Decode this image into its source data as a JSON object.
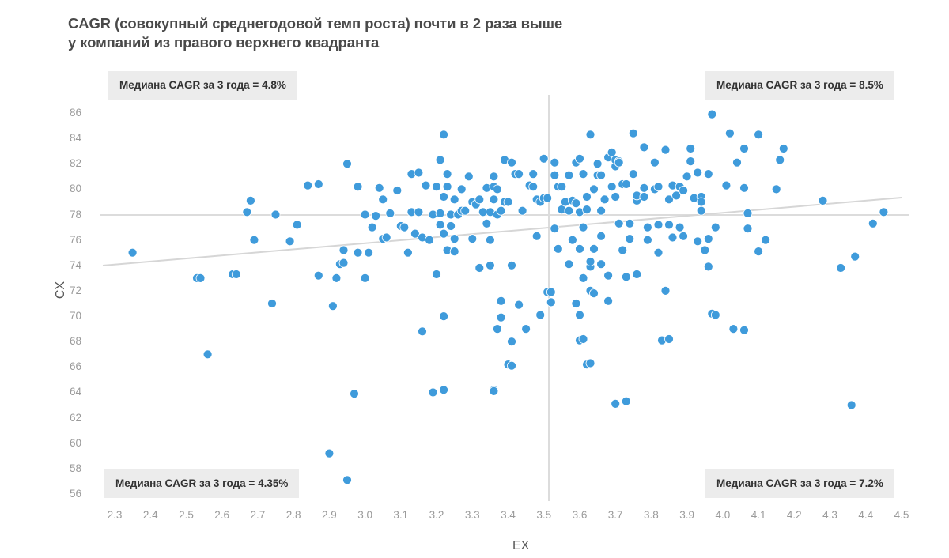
{
  "title": {
    "line1": "CAGR (совокупный среднегодовой темп роста) почти в  2 раза выше",
    "line2": "у компаний из правого верхнего квадранта"
  },
  "quadrant_labels": {
    "top_left": "Медиана CAGR за 3 года = 4.8%",
    "top_right": "Медиана CAGR за 3 года = 8.5%",
    "bottom_left": "Медиана CAGR за 3 года = 4.35%",
    "bottom_right": "Медиана CAGR за 3 года = 7.2%"
  },
  "axes": {
    "x_title": "EX",
    "y_title": "CX",
    "x_ticks": [
      "2.3",
      "2.4",
      "2.5",
      "2.6",
      "2.7",
      "2.8",
      "2.9",
      "3.0",
      "3.1",
      "3.2",
      "3.3",
      "3.4",
      "3.5",
      "3.6",
      "3.7",
      "3.8",
      "3.9",
      "4.0",
      "4.1",
      "4.2",
      "4.3",
      "4.4",
      "4.5"
    ],
    "y_ticks": [
      "86",
      "84",
      "82",
      "80",
      "78",
      "76",
      "74",
      "72",
      "70",
      "68",
      "66",
      "64",
      "62",
      "60",
      "58",
      "56"
    ]
  },
  "colors": {
    "point": "#3f9bdb",
    "point_stroke": "#ffffff",
    "reference_line": "#dcdcdc",
    "trend_line": "#d6d6d6",
    "label_bg": "#ececec"
  },
  "chart_data": {
    "type": "scatter",
    "title": "CAGR (совокупный среднегодовой темп роста) почти в 2 раза выше у компаний из правого верхнего квадранта",
    "xlabel": "EX",
    "ylabel": "CX",
    "xlim": [
      2.3,
      4.5
    ],
    "ylim": [
      56,
      86
    ],
    "grid": false,
    "reference_lines": {
      "x_median": 3.5,
      "y_median": 78
    },
    "trend_line": {
      "start": [
        2.3,
        74.1
      ],
      "end": [
        4.5,
        79.4
      ]
    },
    "annotations": [
      {
        "quadrant": "top-left",
        "text": "Медиана CAGR за 3 года = 4.8%"
      },
      {
        "quadrant": "top-right",
        "text": "Медиана CAGR за 3 года = 8.5%"
      },
      {
        "quadrant": "bottom-left",
        "text": "Медиана CAGR за 3 года = 4.35%"
      },
      {
        "quadrant": "bottom-right",
        "text": "Медиана CAGR за 3 года = 7.2%"
      }
    ],
    "points": [
      [
        2.35,
        75.0
      ],
      [
        2.53,
        73.0
      ],
      [
        2.54,
        73.0
      ],
      [
        2.56,
        67.0
      ],
      [
        2.63,
        73.3
      ],
      [
        2.64,
        73.3
      ],
      [
        2.67,
        78.2
      ],
      [
        2.68,
        79.1
      ],
      [
        2.69,
        76.0
      ],
      [
        2.74,
        71.0
      ],
      [
        2.75,
        78.0
      ],
      [
        2.79,
        75.9
      ],
      [
        2.81,
        77.2
      ],
      [
        2.84,
        80.3
      ],
      [
        2.87,
        80.4
      ],
      [
        2.87,
        73.2
      ],
      [
        2.9,
        59.2
      ],
      [
        2.91,
        70.8
      ],
      [
        2.92,
        73.0
      ],
      [
        2.93,
        74.1
      ],
      [
        2.94,
        75.2
      ],
      [
        2.94,
        74.2
      ],
      [
        2.95,
        57.1
      ],
      [
        2.95,
        82.0
      ],
      [
        2.97,
        63.9
      ],
      [
        2.97,
        63.9
      ],
      [
        2.98,
        80.2
      ],
      [
        2.98,
        75.0
      ],
      [
        3.0,
        78.0
      ],
      [
        3.0,
        73.0
      ],
      [
        3.01,
        75.0
      ],
      [
        3.02,
        77.0
      ],
      [
        3.03,
        77.9
      ],
      [
        3.04,
        80.1
      ],
      [
        3.05,
        76.1
      ],
      [
        3.05,
        79.2
      ],
      [
        3.06,
        76.2
      ],
      [
        3.07,
        78.1
      ],
      [
        3.09,
        79.9
      ],
      [
        3.1,
        77.1
      ],
      [
        3.11,
        77.0
      ],
      [
        3.12,
        75.0
      ],
      [
        3.13,
        78.2
      ],
      [
        3.13,
        81.2
      ],
      [
        3.14,
        76.5
      ],
      [
        3.15,
        78.2
      ],
      [
        3.15,
        81.3
      ],
      [
        3.16,
        68.8
      ],
      [
        3.16,
        76.2
      ],
      [
        3.17,
        80.3
      ],
      [
        3.18,
        76.0
      ],
      [
        3.19,
        64.0
      ],
      [
        3.19,
        78.0
      ],
      [
        3.2,
        80.2
      ],
      [
        3.2,
        73.3
      ],
      [
        3.21,
        78.1
      ],
      [
        3.21,
        82.3
      ],
      [
        3.22,
        64.2
      ],
      [
        3.21,
        77.2
      ],
      [
        3.22,
        76.5
      ],
      [
        3.22,
        84.3
      ],
      [
        3.22,
        79.4
      ],
      [
        3.22,
        70.0
      ],
      [
        3.23,
        81.2
      ],
      [
        3.23,
        75.2
      ],
      [
        3.23,
        80.2
      ],
      [
        3.24,
        77.1
      ],
      [
        3.24,
        78.0
      ],
      [
        3.25,
        79.2
      ],
      [
        3.25,
        76.1
      ],
      [
        3.25,
        75.1
      ],
      [
        3.26,
        78.0
      ],
      [
        3.27,
        80.0
      ],
      [
        3.27,
        78.3
      ],
      [
        3.28,
        78.3
      ],
      [
        3.29,
        81.0
      ],
      [
        3.3,
        79.0
      ],
      [
        3.3,
        76.1
      ],
      [
        3.31,
        78.8
      ],
      [
        3.32,
        79.2
      ],
      [
        3.32,
        73.8
      ],
      [
        3.33,
        78.2
      ],
      [
        3.34,
        77.3
      ],
      [
        3.34,
        80.1
      ],
      [
        3.35,
        76.0
      ],
      [
        3.35,
        74.0
      ],
      [
        3.35,
        78.2
      ],
      [
        3.36,
        80.2
      ],
      [
        3.36,
        81.0
      ],
      [
        3.36,
        64.2
      ],
      [
        3.36,
        64.1
      ],
      [
        3.36,
        79.2
      ],
      [
        3.37,
        80.0
      ],
      [
        3.37,
        78.0
      ],
      [
        3.37,
        69.0
      ],
      [
        3.38,
        71.2
      ],
      [
        3.38,
        69.9
      ],
      [
        3.38,
        78.3
      ],
      [
        3.39,
        82.3
      ],
      [
        3.39,
        79.0
      ],
      [
        3.4,
        79.0
      ],
      [
        3.4,
        66.2
      ],
      [
        3.41,
        82.1
      ],
      [
        3.41,
        66.1
      ],
      [
        3.41,
        68.0
      ],
      [
        3.41,
        74.0
      ],
      [
        3.42,
        81.2
      ],
      [
        3.43,
        81.2
      ],
      [
        3.43,
        70.9
      ],
      [
        3.44,
        78.3
      ],
      [
        3.45,
        69.0
      ],
      [
        3.46,
        80.3
      ],
      [
        3.47,
        81.2
      ],
      [
        3.47,
        80.2
      ],
      [
        3.48,
        76.3
      ],
      [
        3.48,
        79.2
      ],
      [
        3.49,
        70.1
      ],
      [
        3.49,
        79.0
      ],
      [
        3.5,
        82.4
      ],
      [
        3.5,
        79.3
      ],
      [
        3.51,
        71.9
      ],
      [
        3.51,
        79.3
      ],
      [
        3.52,
        71.1
      ],
      [
        3.52,
        71.9
      ],
      [
        3.53,
        81.1
      ],
      [
        3.53,
        76.9
      ],
      [
        3.53,
        82.1
      ],
      [
        3.54,
        75.3
      ],
      [
        3.54,
        80.2
      ],
      [
        3.55,
        78.4
      ],
      [
        3.55,
        80.2
      ],
      [
        3.56,
        79.0
      ],
      [
        3.57,
        78.3
      ],
      [
        3.57,
        81.1
      ],
      [
        3.57,
        74.1
      ],
      [
        3.58,
        76.0
      ],
      [
        3.58,
        79.1
      ],
      [
        3.59,
        78.9
      ],
      [
        3.59,
        71.0
      ],
      [
        3.59,
        82.1
      ],
      [
        3.6,
        82.4
      ],
      [
        3.6,
        75.3
      ],
      [
        3.6,
        70.1
      ],
      [
        3.6,
        68.1
      ],
      [
        3.6,
        78.2
      ],
      [
        3.61,
        77.0
      ],
      [
        3.61,
        68.2
      ],
      [
        3.61,
        73.0
      ],
      [
        3.61,
        81.2
      ],
      [
        3.62,
        78.4
      ],
      [
        3.62,
        66.2
      ],
      [
        3.62,
        79.4
      ],
      [
        3.63,
        84.3
      ],
      [
        3.63,
        66.3
      ],
      [
        3.63,
        73.9
      ],
      [
        3.63,
        74.3
      ],
      [
        3.63,
        72.0
      ],
      [
        3.64,
        80.0
      ],
      [
        3.64,
        71.8
      ],
      [
        3.64,
        75.3
      ],
      [
        3.65,
        81.1
      ],
      [
        3.65,
        82.0
      ],
      [
        3.66,
        81.1
      ],
      [
        3.66,
        74.1
      ],
      [
        3.66,
        76.3
      ],
      [
        3.66,
        78.3
      ],
      [
        3.67,
        79.2
      ],
      [
        3.68,
        82.5
      ],
      [
        3.68,
        73.2
      ],
      [
        3.68,
        71.2
      ],
      [
        3.69,
        80.2
      ],
      [
        3.69,
        82.9
      ],
      [
        3.7,
        81.8
      ],
      [
        3.7,
        63.1
      ],
      [
        3.7,
        79.4
      ],
      [
        3.7,
        82.3
      ],
      [
        3.71,
        82.2
      ],
      [
        3.71,
        82.1
      ],
      [
        3.71,
        77.3
      ],
      [
        3.72,
        80.4
      ],
      [
        3.72,
        75.2
      ],
      [
        3.73,
        73.1
      ],
      [
        3.73,
        63.3
      ],
      [
        3.73,
        80.4
      ],
      [
        3.74,
        77.3
      ],
      [
        3.74,
        76.1
      ],
      [
        3.75,
        81.2
      ],
      [
        3.75,
        84.4
      ],
      [
        3.76,
        73.3
      ],
      [
        3.76,
        79.1
      ],
      [
        3.76,
        79.5
      ],
      [
        3.78,
        80.1
      ],
      [
        3.78,
        79.4
      ],
      [
        3.78,
        83.3
      ],
      [
        3.79,
        77.0
      ],
      [
        3.79,
        76.0
      ],
      [
        3.81,
        80.0
      ],
      [
        3.81,
        82.1
      ],
      [
        3.82,
        75.0
      ],
      [
        3.82,
        80.2
      ],
      [
        3.82,
        77.2
      ],
      [
        3.83,
        68.1
      ],
      [
        3.84,
        72.0
      ],
      [
        3.84,
        83.1
      ],
      [
        3.85,
        68.2
      ],
      [
        3.85,
        79.2
      ],
      [
        3.85,
        77.2
      ],
      [
        3.86,
        76.2
      ],
      [
        3.86,
        80.3
      ],
      [
        3.87,
        79.5
      ],
      [
        3.88,
        80.2
      ],
      [
        3.88,
        77.0
      ],
      [
        3.89,
        76.3
      ],
      [
        3.89,
        79.9
      ],
      [
        3.9,
        81.0
      ],
      [
        3.91,
        83.2
      ],
      [
        3.91,
        82.2
      ],
      [
        3.92,
        79.3
      ],
      [
        3.93,
        81.3
      ],
      [
        3.93,
        75.9
      ],
      [
        3.94,
        78.3
      ],
      [
        3.94,
        79.4
      ],
      [
        3.94,
        79.0
      ],
      [
        3.95,
        75.2
      ],
      [
        3.96,
        81.2
      ],
      [
        3.96,
        73.9
      ],
      [
        3.96,
        76.1
      ],
      [
        3.97,
        70.2
      ],
      [
        3.97,
        85.9
      ],
      [
        3.98,
        70.1
      ],
      [
        3.98,
        77.0
      ],
      [
        4.01,
        80.3
      ],
      [
        4.02,
        84.4
      ],
      [
        4.03,
        69.0
      ],
      [
        4.04,
        82.1
      ],
      [
        4.06,
        68.9
      ],
      [
        4.06,
        83.2
      ],
      [
        4.06,
        80.1
      ],
      [
        4.07,
        78.1
      ],
      [
        4.07,
        76.9
      ],
      [
        4.1,
        84.3
      ],
      [
        4.1,
        75.1
      ],
      [
        4.12,
        76.0
      ],
      [
        4.15,
        80.0
      ],
      [
        4.16,
        82.3
      ],
      [
        4.17,
        83.2
      ],
      [
        4.28,
        79.1
      ],
      [
        4.33,
        73.8
      ],
      [
        4.36,
        63.0
      ],
      [
        4.37,
        74.7
      ],
      [
        4.42,
        77.3
      ],
      [
        4.45,
        78.2
      ]
    ]
  }
}
